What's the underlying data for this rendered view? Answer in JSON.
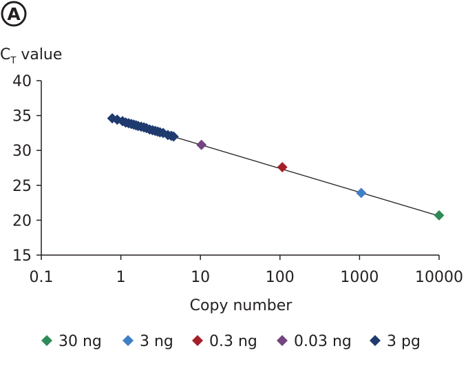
{
  "panel_label": "A",
  "chart_data": {
    "type": "scatter",
    "xlabel": "Copy number",
    "ylabel": {
      "main": "C",
      "subscript": "T",
      "rest": " value"
    },
    "x_scale": "log",
    "xlim": [
      0.1,
      10000
    ],
    "ylim": [
      15,
      40
    ],
    "x_ticks": [
      "0.1",
      "1",
      "10",
      "100",
      "1000",
      "10000"
    ],
    "y_ticks": [
      "15",
      "20",
      "25",
      "30",
      "35",
      "40"
    ],
    "grid": false,
    "legend_position": "bottom",
    "trendline": {
      "x": [
        0.78,
        10000
      ],
      "y": [
        34.6,
        20.6
      ]
    },
    "series": [
      {
        "name": "30 ng",
        "color": "#2e8b57",
        "marker": "diamond",
        "points": [
          {
            "x": 10000,
            "y": 20.7
          }
        ]
      },
      {
        "name": "3 ng",
        "color": "#3f7fc6",
        "marker": "diamond",
        "points": [
          {
            "x": 1050,
            "y": 23.9
          }
        ]
      },
      {
        "name": "0.3 ng",
        "color": "#a3202a",
        "marker": "diamond",
        "points": [
          {
            "x": 107,
            "y": 27.6
          }
        ]
      },
      {
        "name": "0.03 ng",
        "color": "#74457f",
        "marker": "diamond",
        "points": [
          {
            "x": 10.3,
            "y": 30.8
          }
        ]
      },
      {
        "name": "3 pg",
        "color": "#1f3a6e",
        "marker": "diamond",
        "points": [
          {
            "x": 0.78,
            "y": 34.6
          },
          {
            "x": 0.9,
            "y": 34.4
          },
          {
            "x": 1.05,
            "y": 34.2
          },
          {
            "x": 1.15,
            "y": 34.0
          },
          {
            "x": 1.25,
            "y": 33.9
          },
          {
            "x": 1.35,
            "y": 33.8
          },
          {
            "x": 1.45,
            "y": 33.7
          },
          {
            "x": 1.55,
            "y": 33.6
          },
          {
            "x": 1.65,
            "y": 33.5
          },
          {
            "x": 1.8,
            "y": 33.4
          },
          {
            "x": 1.95,
            "y": 33.3
          },
          {
            "x": 2.1,
            "y": 33.2
          },
          {
            "x": 2.3,
            "y": 33.0
          },
          {
            "x": 2.5,
            "y": 32.9
          },
          {
            "x": 2.7,
            "y": 32.8
          },
          {
            "x": 2.9,
            "y": 32.7
          },
          {
            "x": 3.1,
            "y": 32.6
          },
          {
            "x": 3.4,
            "y": 32.5
          },
          {
            "x": 3.9,
            "y": 32.2
          },
          {
            "x": 4.3,
            "y": 32.1
          },
          {
            "x": 4.6,
            "y": 32.0
          }
        ]
      }
    ]
  }
}
